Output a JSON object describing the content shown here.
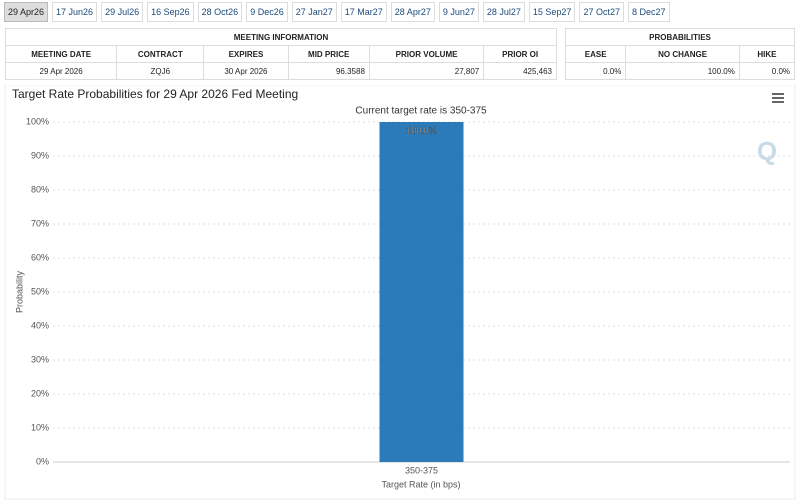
{
  "tabs": [
    "29 Apr26",
    "17 Jun26",
    "29 Jul26",
    "16 Sep26",
    "28 Oct26",
    "9 Dec26",
    "27 Jan27",
    "17 Mar27",
    "28 Apr27",
    "9 Jun27",
    "28 Jul27",
    "15 Sep27",
    "27 Oct27",
    "8 Dec27"
  ],
  "meeting_info": {
    "title": "MEETING INFORMATION",
    "columns": [
      "MEETING DATE",
      "CONTRACT",
      "EXPIRES",
      "MID PRICE",
      "PRIOR VOLUME",
      "PRIOR OI"
    ],
    "row": [
      "29 Apr 2026",
      "ZQJ6",
      "30 Apr 2026",
      "96.3588",
      "27,807",
      "425,463"
    ]
  },
  "probabilities": {
    "title": "PROBABILITIES",
    "columns": [
      "EASE",
      "NO CHANGE",
      "HIKE"
    ],
    "row": [
      "0.0%",
      "100.0%",
      "0.0%"
    ]
  },
  "chart_data": {
    "type": "bar",
    "title": "Target Rate Probabilities for 29 Apr 2026 Fed Meeting",
    "subtitle": "Current target rate is 350-375",
    "x_label": "Target Rate (in bps)",
    "y_label": "Probability",
    "categories": [
      "350-375"
    ],
    "values": [
      100
    ],
    "value_labels": [
      "100.0%"
    ],
    "color": "#2b7bba",
    "ylim": [
      0,
      100
    ],
    "yticks": [
      {
        "value": 0,
        "label": "0%"
      },
      {
        "value": 10,
        "label": "10%"
      },
      {
        "value": 20,
        "label": "20%"
      },
      {
        "value": 30,
        "label": "30%"
      },
      {
        "value": 40,
        "label": "40%"
      },
      {
        "value": 50,
        "label": "50%"
      },
      {
        "value": 60,
        "label": "60%"
      },
      {
        "value": 70,
        "label": "70%"
      },
      {
        "value": 80,
        "label": "80%"
      },
      {
        "value": 90,
        "label": "90%"
      },
      {
        "value": 100,
        "label": "100%"
      }
    ],
    "grid": true
  }
}
